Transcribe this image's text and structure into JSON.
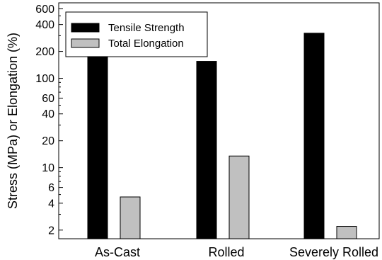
{
  "chart_data": {
    "type": "bar",
    "title": "",
    "xlabel": "",
    "ylabel": "Stress (MPa) or Elongation (%)",
    "yscale": "log",
    "ylim": [
      1.6,
      700
    ],
    "yticks": [
      2,
      4,
      6,
      10,
      20,
      40,
      60,
      100,
      200,
      400,
      600
    ],
    "categories": [
      "As-Cast",
      "Rolled",
      "Severely Rolled"
    ],
    "series": [
      {
        "name": "Tensile Strength",
        "color": "#000000",
        "values": [
          175,
          155,
          320
        ]
      },
      {
        "name": "Total Elongation",
        "color": "#c0c0c0",
        "values": [
          4.7,
          13.5,
          2.2
        ]
      }
    ],
    "legend": "top-left",
    "grid": false
  }
}
